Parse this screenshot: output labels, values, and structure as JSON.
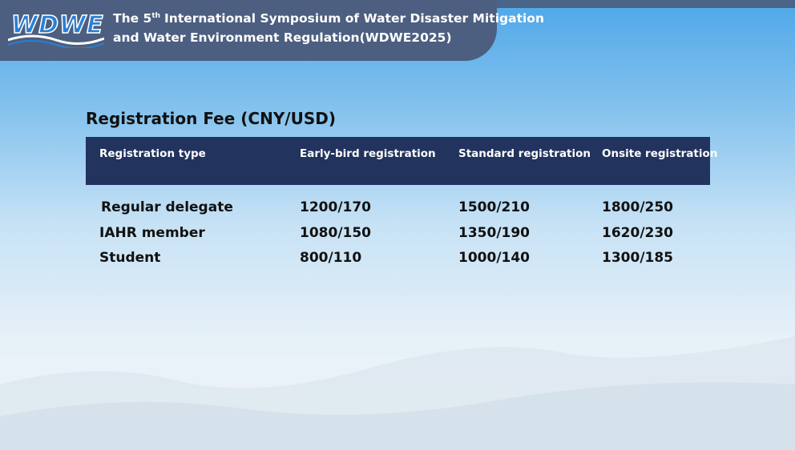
{
  "header": {
    "logo": "WDWE",
    "title": {
      "line1_start": "The 5",
      "line1_sup": "th",
      "line1_end": "International Symposium of Water Disaster Mitigation",
      "line2": "and Water Environment Regulation(WDWE2025)"
    }
  },
  "section_title": "Registration Fee (CNY/USD)",
  "table": {
    "columns": [
      "Registration type",
      "Early-bird registration",
      "Standard registration",
      "Onsite registration"
    ],
    "rows": [
      [
        "Regular delegate",
        "1200/170",
        "1500/210",
        "1800/250"
      ],
      [
        "IAHR member",
        "1080/150",
        "1350/190",
        "1620/230"
      ],
      [
        "Student",
        "800/110",
        "1000/140",
        "1300/185"
      ]
    ]
  }
}
